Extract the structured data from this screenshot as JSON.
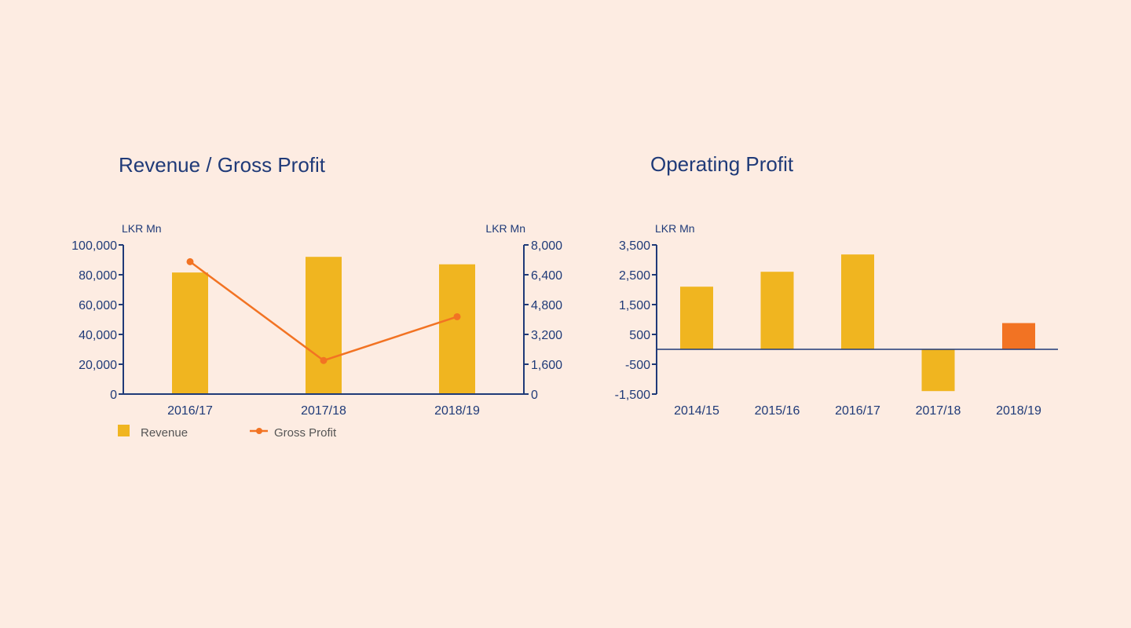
{
  "colors": {
    "background": "#fdece2",
    "axis": "#1f3a78",
    "bar": "#f0b520",
    "highlight_bar": "#f27323",
    "line": "#f27323",
    "text": "#1f3a78",
    "legend_text": "#555555"
  },
  "chart_data": [
    {
      "type": "bar",
      "title": "Revenue / Gross Profit",
      "categories": [
        "2016/17",
        "2017/18",
        "2018/19"
      ],
      "y_left": {
        "label": "LKR Mn",
        "ticks": [
          0,
          20000,
          40000,
          60000,
          80000,
          100000
        ],
        "tick_labels": [
          "0",
          "20,000",
          "40,000",
          "60,000",
          "80,000",
          "100,000"
        ],
        "ylim": [
          0,
          100000
        ]
      },
      "y_right": {
        "label": "LKR Mn",
        "ticks": [
          0,
          1600,
          3200,
          4800,
          6400,
          8000
        ],
        "tick_labels": [
          "0",
          "1,600",
          "3,200",
          "4,800",
          "6,400",
          "8,000"
        ],
        "ylim": [
          0,
          8000
        ]
      },
      "series": [
        {
          "name": "Revenue",
          "type": "bar",
          "axis": "left",
          "values": [
            81500,
            92000,
            87000
          ]
        },
        {
          "name": "Gross Profit",
          "type": "line",
          "axis": "right",
          "values": [
            7100,
            1800,
            4150
          ]
        }
      ],
      "legend": {
        "position": "bottom-left",
        "items": [
          "Revenue",
          "Gross Profit"
        ]
      },
      "grid": false
    },
    {
      "type": "bar",
      "title": "Operating Profit",
      "categories": [
        "2014/15",
        "2015/16",
        "2016/17",
        "2017/18",
        "2018/19"
      ],
      "y_left": {
        "label": "LKR Mn",
        "ticks": [
          -1500,
          -500,
          500,
          1500,
          2500,
          3500
        ],
        "tick_labels": [
          "-1,500",
          "-500",
          "500",
          "1,500",
          "2,500",
          "3,500"
        ],
        "ylim": [
          -1500,
          3500
        ]
      },
      "series": [
        {
          "name": "",
          "type": "bar",
          "axis": "left",
          "values": [
            2100,
            2600,
            3180,
            -1400,
            880
          ]
        }
      ],
      "highlight_index": 4,
      "grid": false
    }
  ]
}
